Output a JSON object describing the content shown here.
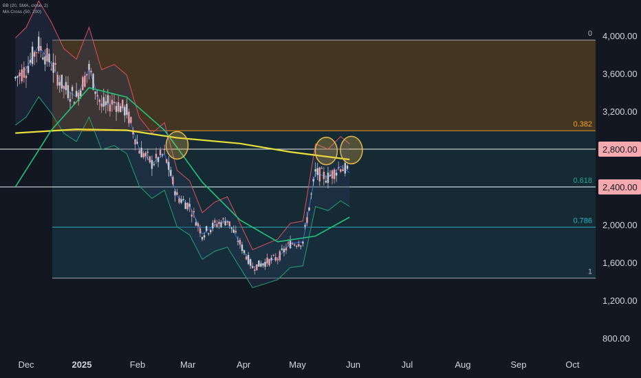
{
  "legend": {
    "bb": "BB (20, SMA, close, 2)",
    "ma": "MA Cross (50, 200)"
  },
  "colors": {
    "background": "#131722",
    "candle_up": "#c9ccd4",
    "candle_down": "#e8a0a8",
    "ma50": "#22c57a",
    "ma200": "#e8e03a",
    "bb_upper": "#e0505e",
    "bb_lower": "#22a07a",
    "bb_basis": "#3a6fd8",
    "circle": "#e8b84a",
    "price_tag": "#f7a9b0"
  },
  "chart_data": {
    "type": "candlestick",
    "title": "",
    "ylim": [
      800,
      4200
    ],
    "y_ticks": [
      "4,000.00",
      "3,600.00",
      "3,200.00",
      "2,800.00",
      "2,400.00",
      "2,000.00",
      "1,600.00",
      "1,200.00",
      "800.00"
    ],
    "x_ticks": [
      "Dec",
      "2025",
      "Feb",
      "Mar",
      "Apr",
      "May",
      "Jun",
      "Jul",
      "Aug",
      "Sep",
      "Oct"
    ],
    "price_tags": [
      "2,800.00",
      "2,400.00"
    ],
    "horizontal_levels": [
      2800,
      2400
    ],
    "fibonacci": {
      "levels": [
        {
          "ratio": "0",
          "price": 3955,
          "color": "#b2b5be"
        },
        {
          "ratio": "0.382",
          "price": 2995,
          "color": "#f5a623"
        },
        {
          "ratio": "0.618",
          "price": 2400,
          "color": "#26a69a"
        },
        {
          "ratio": "0.786",
          "price": 1975,
          "color": "#2bb5c8"
        },
        {
          "ratio": "1",
          "price": 1435,
          "color": "#b2b5be"
        }
      ],
      "zones": [
        "#f5a623",
        "#26a69a",
        "#26a69a",
        "#2bb5c8",
        "#787b86"
      ]
    },
    "ohlc_close_path": [
      {
        "date": "2024-11-25",
        "close": 3550
      },
      {
        "date": "2024-12-01",
        "close": 3650
      },
      {
        "date": "2024-12-08",
        "close": 3900
      },
      {
        "date": "2024-12-15",
        "close": 3700
      },
      {
        "date": "2024-12-22",
        "close": 3450
      },
      {
        "date": "2024-12-29",
        "close": 3350
      },
      {
        "date": "2025-01-05",
        "close": 3650
      },
      {
        "date": "2025-01-12",
        "close": 3250
      },
      {
        "date": "2025-01-19",
        "close": 3300
      },
      {
        "date": "2025-01-26",
        "close": 3200
      },
      {
        "date": "2025-02-02",
        "close": 2800
      },
      {
        "date": "2025-02-09",
        "close": 2650
      },
      {
        "date": "2025-02-16",
        "close": 2750
      },
      {
        "date": "2025-02-23",
        "close": 2300
      },
      {
        "date": "2025-03-02",
        "close": 2200
      },
      {
        "date": "2025-03-09",
        "close": 1900
      },
      {
        "date": "2025-03-16",
        "close": 2000
      },
      {
        "date": "2025-03-23",
        "close": 2050
      },
      {
        "date": "2025-03-30",
        "close": 1800
      },
      {
        "date": "2025-04-06",
        "close": 1550
      },
      {
        "date": "2025-04-13",
        "close": 1600
      },
      {
        "date": "2025-04-20",
        "close": 1650
      },
      {
        "date": "2025-04-27",
        "close": 1800
      },
      {
        "date": "2025-05-04",
        "close": 1820
      },
      {
        "date": "2025-05-11",
        "close": 2550
      },
      {
        "date": "2025-05-18",
        "close": 2500
      },
      {
        "date": "2025-05-25",
        "close": 2620
      },
      {
        "date": "2025-05-30",
        "close": 2550
      }
    ],
    "ma50": [
      {
        "date": "2024-11-25",
        "value": 2400
      },
      {
        "date": "2024-12-15",
        "value": 3000
      },
      {
        "date": "2025-01-05",
        "value": 3450
      },
      {
        "date": "2025-01-26",
        "value": 3350
      },
      {
        "date": "2025-02-16",
        "value": 3000
      },
      {
        "date": "2025-03-09",
        "value": 2450
      },
      {
        "date": "2025-03-30",
        "value": 2050
      },
      {
        "date": "2025-04-20",
        "value": 1820
      },
      {
        "date": "2025-05-11",
        "value": 1880
      },
      {
        "date": "2025-05-30",
        "value": 2080
      }
    ],
    "ma200": [
      {
        "date": "2024-11-25",
        "value": 2970
      },
      {
        "date": "2024-12-29",
        "value": 3010
      },
      {
        "date": "2025-01-26",
        "value": 3000
      },
      {
        "date": "2025-02-23",
        "value": 2920
      },
      {
        "date": "2025-03-30",
        "value": 2860
      },
      {
        "date": "2025-04-27",
        "value": 2770
      },
      {
        "date": "2025-05-30",
        "value": 2690
      }
    ],
    "circles": [
      {
        "date": "2025-02-23",
        "price": 2840
      },
      {
        "date": "2025-05-17",
        "price": 2780
      },
      {
        "date": "2025-05-31",
        "price": 2790
      }
    ]
  }
}
